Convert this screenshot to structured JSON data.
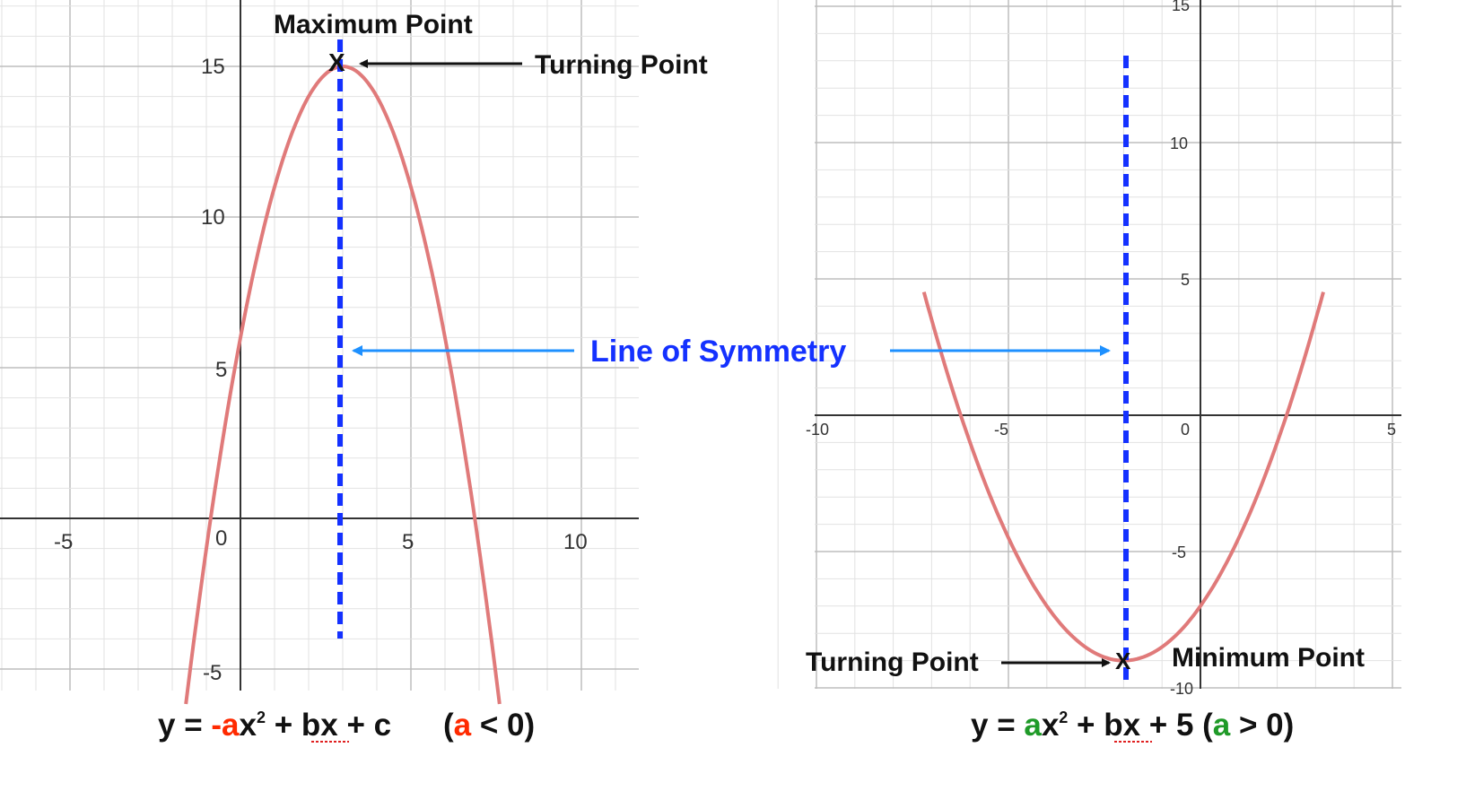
{
  "colors": {
    "curve": "#e07a7a",
    "symmetry_line": "#1431ff",
    "symmetry_text": "#1431ff",
    "symmetry_arrow": "#1e90ff",
    "neg_a": "#ff2a00",
    "pos_a": "#1f9a28",
    "axis": "#444444",
    "grid_major": "#bdbdbd",
    "grid_minor": "#e2e2e2"
  },
  "left_graph": {
    "x_ticks": [
      "-5",
      "0",
      "5",
      "10"
    ],
    "y_ticks": [
      "15",
      "10",
      "5",
      "-5"
    ],
    "vertex_marker": "X",
    "max_label": "Maximum Point",
    "turning_label": "Turning Point",
    "curve": {
      "a": -1,
      "vertex_x": 3,
      "vertex_y": 15,
      "x_range": [
        -1.6,
        7.6
      ]
    },
    "symmetry_x": 3
  },
  "right_graph": {
    "x_ticks": [
      "-10",
      "-5",
      "0",
      "5"
    ],
    "y_ticks": [
      "15",
      "10",
      "5",
      "-5",
      "-10"
    ],
    "vertex_marker": "X",
    "min_label": "Minimum Point",
    "turning_label": "Turning Point",
    "curve": {
      "a": 0.5,
      "vertex_x": -2,
      "vertex_y": -9,
      "x_range": [
        -7.2,
        3.2
      ]
    },
    "symmetry_x": -2
  },
  "symmetry_label": "Line of Symmetry",
  "equations": {
    "left": {
      "y": "y = ",
      "neg_a": "-a",
      "x2": "x",
      "sup": "2",
      "plus1": " + ",
      "bx": "bx",
      "rest": " + c",
      "cond_open": "(",
      "cond_a": "a",
      "cond_rest": " < 0)"
    },
    "right": {
      "y": "y = ",
      "a": "a",
      "x2": "x",
      "sup": "2",
      "plus1": " + ",
      "bx": "bx",
      "rest": " + 5 (",
      "cond_a": "a",
      "cond_rest": " > 0)"
    }
  }
}
